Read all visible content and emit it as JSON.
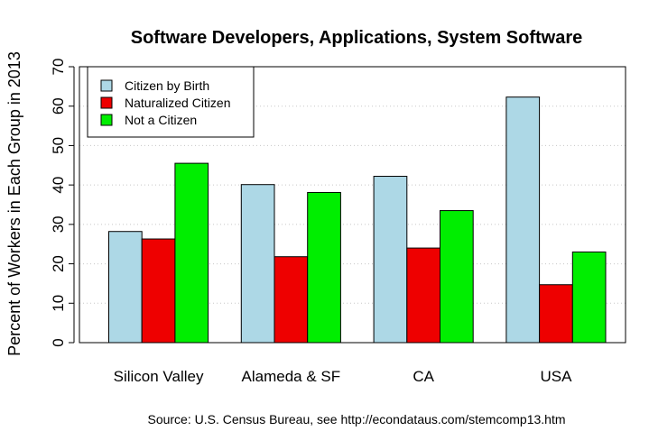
{
  "chart_data": {
    "type": "bar",
    "title": "Software Developers, Applications, System Software",
    "xlabel": "",
    "ylabel": "Percent of Workers in Each Group in 2013",
    "ylim": [
      0,
      70
    ],
    "yticks": [
      0,
      10,
      20,
      30,
      40,
      50,
      60,
      70
    ],
    "grid": "horizontal dotted",
    "legend_position": "top-left",
    "categories": [
      "Silicon Valley",
      "Alameda & SF",
      "CA",
      "USA"
    ],
    "series": [
      {
        "name": "Citizen by Birth",
        "color": "#add8e6",
        "values": [
          28.2,
          40.1,
          42.2,
          62.3
        ]
      },
      {
        "name": "Naturalized Citizen",
        "color": "#ee0000",
        "values": [
          26.3,
          21.8,
          24.0,
          14.7
        ]
      },
      {
        "name": "Not a Citizen",
        "color": "#00ee00",
        "values": [
          45.5,
          38.1,
          33.5,
          23.0
        ]
      }
    ],
    "source": "Source: U.S. Census Bureau, see http://econdataus.com/stemcomp13.htm"
  }
}
